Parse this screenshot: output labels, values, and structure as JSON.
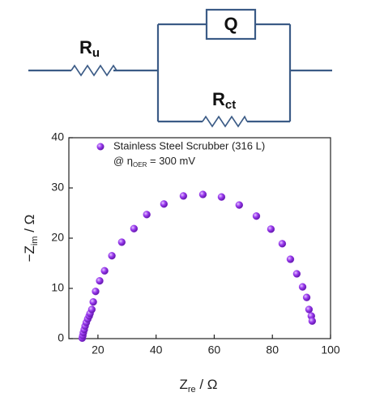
{
  "circuit": {
    "r_u": {
      "main": "R",
      "sub": "u"
    },
    "q": "Q",
    "r_ct": {
      "main": "R",
      "sub": "ct"
    }
  },
  "chart_data": {
    "type": "scatter",
    "x_label": {
      "main": "Z",
      "sub": "re",
      "unit": " / Ω"
    },
    "y_label": {
      "main": "−Z",
      "sub": "im",
      "unit": " / Ω"
    },
    "annotation": {
      "pre": "@ η",
      "sub": "OER",
      "post": " = 300 mV"
    },
    "xlim": [
      10,
      100
    ],
    "xticks": [
      20,
      40,
      60,
      80,
      100
    ],
    "ylim": [
      0,
      40
    ],
    "yticks": [
      0,
      10,
      20,
      30,
      40
    ],
    "series": [
      {
        "name": "Stainless Steel Scrubber (316 L)",
        "color": "#8a2be2",
        "x": [
          14.6,
          14.8,
          15.0,
          15.3,
          15.6,
          16.0,
          16.5,
          17.0,
          17.3,
          17.9,
          18.4,
          19.2,
          20.6,
          22.3,
          24.8,
          28.2,
          32.4,
          36.8,
          42.7,
          49.4,
          56.1,
          62.5,
          68.6,
          74.5,
          79.5,
          83.4,
          86.2,
          88.4,
          90.4,
          91.8,
          92.6,
          93.4,
          93.7
        ],
        "values": [
          0.1,
          0.6,
          1.2,
          1.8,
          2.5,
          3.2,
          3.9,
          4.5,
          5.0,
          5.8,
          7.3,
          9.4,
          11.5,
          13.5,
          16.5,
          19.2,
          21.9,
          24.7,
          26.8,
          28.4,
          28.7,
          28.2,
          26.6,
          24.4,
          21.8,
          18.9,
          15.8,
          12.9,
          10.3,
          8.2,
          5.8,
          4.5,
          3.5
        ]
      }
    ]
  }
}
